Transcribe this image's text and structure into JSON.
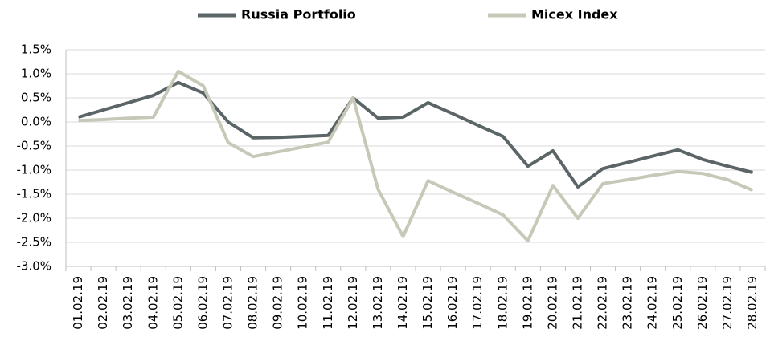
{
  "chart_data": {
    "type": "line",
    "categories": [
      "01.02.19",
      "02.02.19",
      "03.02.19",
      "04.02.19",
      "05.02.19",
      "06.02.19",
      "07.02.19",
      "08.02.19",
      "09.02.19",
      "10.02.19",
      "11.02.19",
      "12.02.19",
      "13.02.19",
      "14.02.19",
      "15.02.19",
      "16.02.19",
      "17.02.19",
      "18.02.19",
      "19.02.19",
      "20.02.19",
      "21.02.19",
      "22.02.19",
      "23.02.19",
      "24.02.19",
      "25.02.19",
      "26.02.19",
      "27.02.19",
      "28.02.19"
    ],
    "series": [
      {
        "name": "Russia Portfolio",
        "color": "#5b6567",
        "values": [
          0.1,
          0.25,
          0.4,
          0.55,
          0.82,
          0.6,
          0.0,
          -0.33,
          -0.32,
          -0.3,
          -0.28,
          0.5,
          0.08,
          0.1,
          0.4,
          0.17,
          -0.07,
          -0.3,
          -0.92,
          -0.6,
          -1.35,
          -0.97,
          -0.84,
          -0.71,
          -0.58,
          -0.78,
          -0.92,
          -1.05
        ]
      },
      {
        "name": "Micex Index",
        "color": "#c7c9b8",
        "values": [
          0.03,
          0.05,
          0.08,
          0.1,
          1.05,
          0.75,
          -0.43,
          -0.72,
          -0.62,
          -0.52,
          -0.42,
          0.5,
          -1.4,
          -2.38,
          -1.22,
          -1.46,
          -1.69,
          -1.93,
          -2.47,
          -1.32,
          -2.0,
          -1.28,
          -1.2,
          -1.11,
          -1.03,
          -1.07,
          -1.2,
          -1.42
        ]
      }
    ],
    "ylim": [
      -3,
      1.5
    ],
    "yticks": [
      {
        "value": 1.5,
        "label": "1.5%"
      },
      {
        "value": 1.0,
        "label": "1.0%"
      },
      {
        "value": 0.5,
        "label": "0.5%"
      },
      {
        "value": 0.0,
        "label": "0.0%"
      },
      {
        "value": -0.5,
        "label": "-0.5%"
      },
      {
        "value": -1.0,
        "label": "-1.0%"
      },
      {
        "value": -1.5,
        "label": "-1.5%"
      },
      {
        "value": -2.0,
        "label": "-2.0%"
      },
      {
        "value": -2.5,
        "label": "-2.5%"
      },
      {
        "value": -3.0,
        "label": "-3.0%"
      }
    ],
    "grid": true,
    "legend": "top"
  }
}
